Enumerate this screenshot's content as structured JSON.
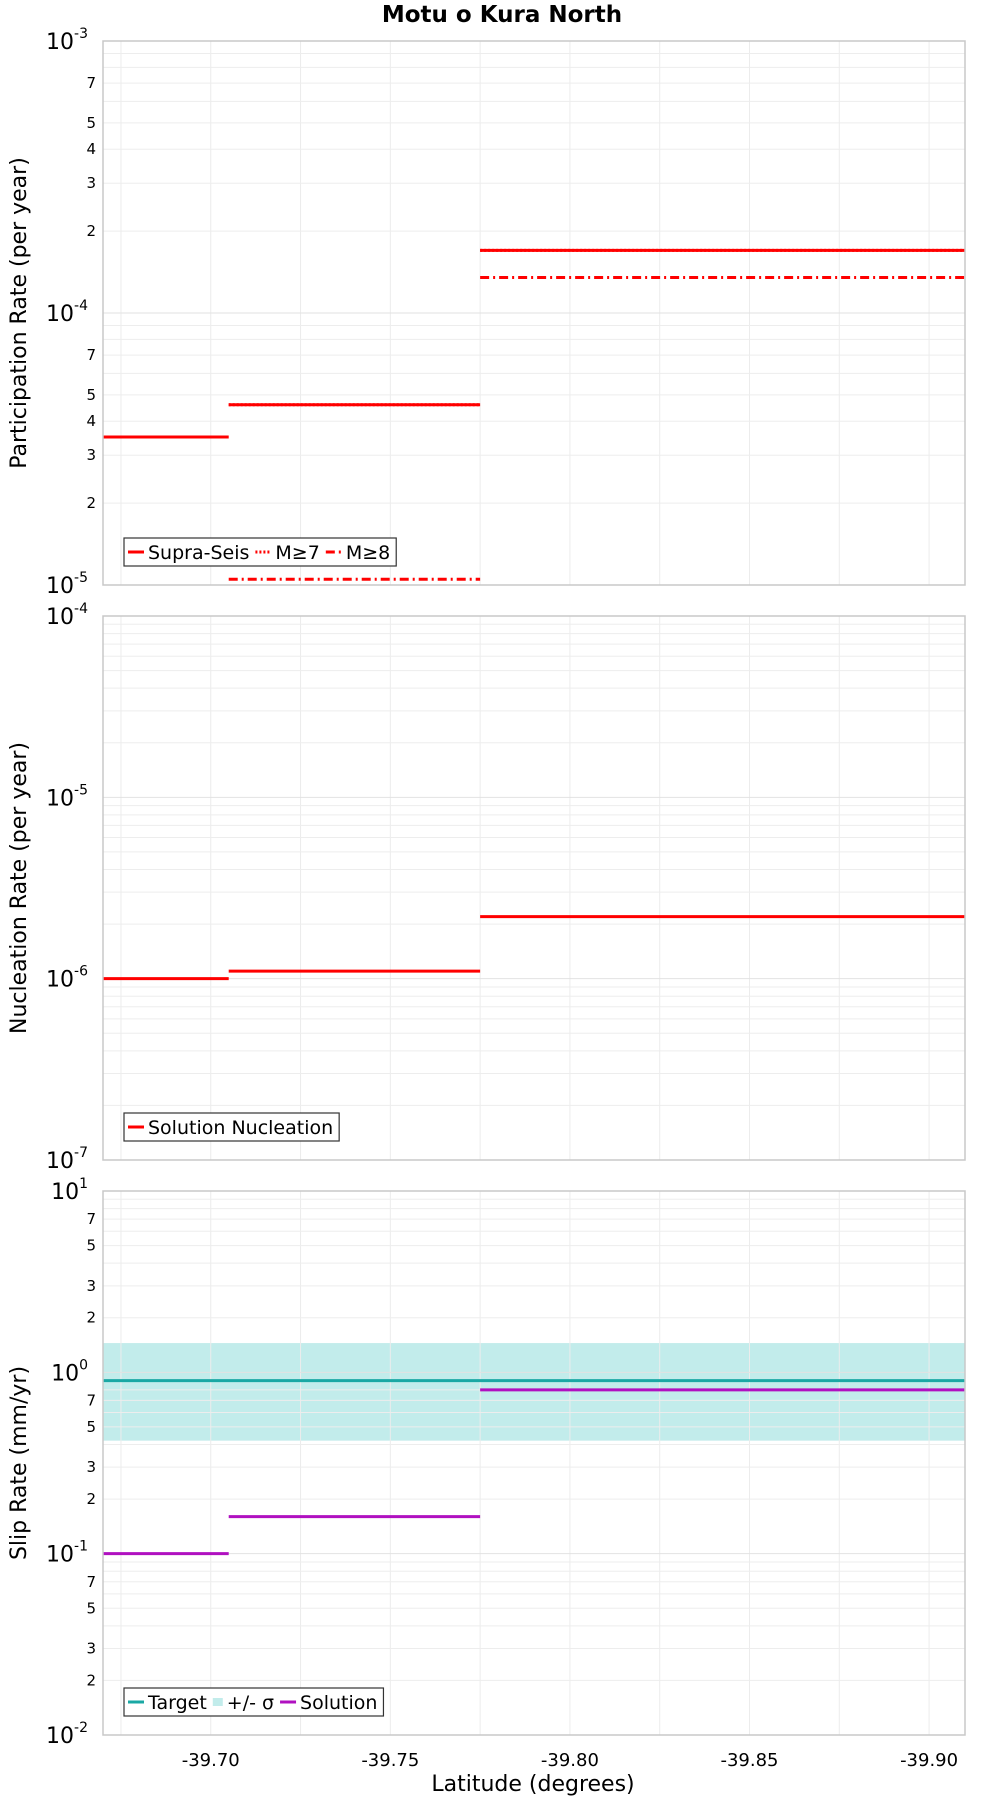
{
  "chart_data": {
    "title": "Motu o Kura North",
    "xlabel": "Latitude (degrees)",
    "xlim": [
      -39.67,
      -39.91
    ],
    "xticks": [
      "-39.70",
      "-39.75",
      "-39.80",
      "-39.85",
      "-39.90"
    ],
    "xtick_values": [
      -39.7,
      -39.75,
      -39.8,
      -39.85,
      -39.9
    ],
    "panels": [
      {
        "type": "line",
        "ylabel": "Participation Rate (per year)",
        "yscale": "log",
        "ylim_exp": [
          -5,
          -3
        ],
        "ytick_major": [
          {
            "base": "10",
            "exp": "-5"
          },
          {
            "base": "10",
            "exp": "-4"
          },
          {
            "base": "10",
            "exp": "-3"
          }
        ],
        "ytick_minor": [
          "2",
          "3",
          "4",
          "5",
          "7"
        ],
        "series": [
          {
            "name": "Supra-Seis",
            "color": "#ff0000",
            "dash": "solid",
            "width": 3,
            "segments": [
              [
                -39.67,
                -39.705,
                3.5e-05
              ],
              [
                -39.705,
                -39.775,
                4.6e-05
              ],
              [
                -39.775,
                -39.91,
                0.00017
              ]
            ]
          },
          {
            "name": "M≥7",
            "color": "#ff0000",
            "dash": "dot",
            "width": 3,
            "segments": [
              [
                -39.705,
                -39.775,
                4.6e-05
              ],
              [
                -39.775,
                -39.91,
                0.00017
              ]
            ]
          },
          {
            "name": "M≥8",
            "color": "#ff0000",
            "dash": "dashdot",
            "width": 3,
            "segments": [
              [
                -39.705,
                -39.775,
                1.05e-05
              ],
              [
                -39.775,
                -39.91,
                0.000135
              ]
            ]
          }
        ],
        "legend_placement": "bottom-left"
      },
      {
        "type": "line",
        "ylabel": "Nucleation Rate (per year)",
        "yscale": "log",
        "ylim_exp": [
          -7,
          -4
        ],
        "ytick_major": [
          {
            "base": "10",
            "exp": "-7"
          },
          {
            "base": "10",
            "exp": "-6"
          },
          {
            "base": "10",
            "exp": "-5"
          },
          {
            "base": "10",
            "exp": "-4"
          }
        ],
        "ytick_minor": [],
        "series": [
          {
            "name": "Solution Nucleation",
            "color": "#ff0000",
            "dash": "solid",
            "width": 3,
            "segments": [
              [
                -39.67,
                -39.705,
                1e-06
              ],
              [
                -39.705,
                -39.775,
                1.1e-06
              ],
              [
                -39.775,
                -39.91,
                2.2e-06
              ]
            ]
          }
        ],
        "legend_placement": "bottom-left"
      },
      {
        "type": "line",
        "ylabel": "Slip Rate (mm/yr)",
        "yscale": "log",
        "ylim_exp": [
          -2,
          1
        ],
        "ytick_major": [
          {
            "base": "10",
            "exp": "-2"
          },
          {
            "base": "10",
            "exp": "-1"
          },
          {
            "base": "10",
            "exp": "0"
          },
          {
            "base": "10",
            "exp": "1"
          }
        ],
        "ytick_minor": [
          "2",
          "3",
          "5",
          "7"
        ],
        "band": {
          "name": "+/- σ",
          "color": "#c2eceb",
          "low": 0.42,
          "high": 1.45
        },
        "series": [
          {
            "name": "Target",
            "color": "#1aa8a4",
            "dash": "solid",
            "width": 3,
            "segments": [
              [
                -39.67,
                -39.91,
                0.9
              ]
            ]
          },
          {
            "name": "Solution",
            "color": "#b010c0",
            "dash": "solid",
            "width": 3,
            "segments": [
              [
                -39.67,
                -39.705,
                0.1
              ],
              [
                -39.705,
                -39.775,
                0.16
              ],
              [
                -39.775,
                -39.91,
                0.8
              ]
            ]
          }
        ],
        "legend_order": [
          "Target",
          "+/- σ",
          "Solution"
        ],
        "legend_placement": "bottom-left"
      }
    ]
  }
}
